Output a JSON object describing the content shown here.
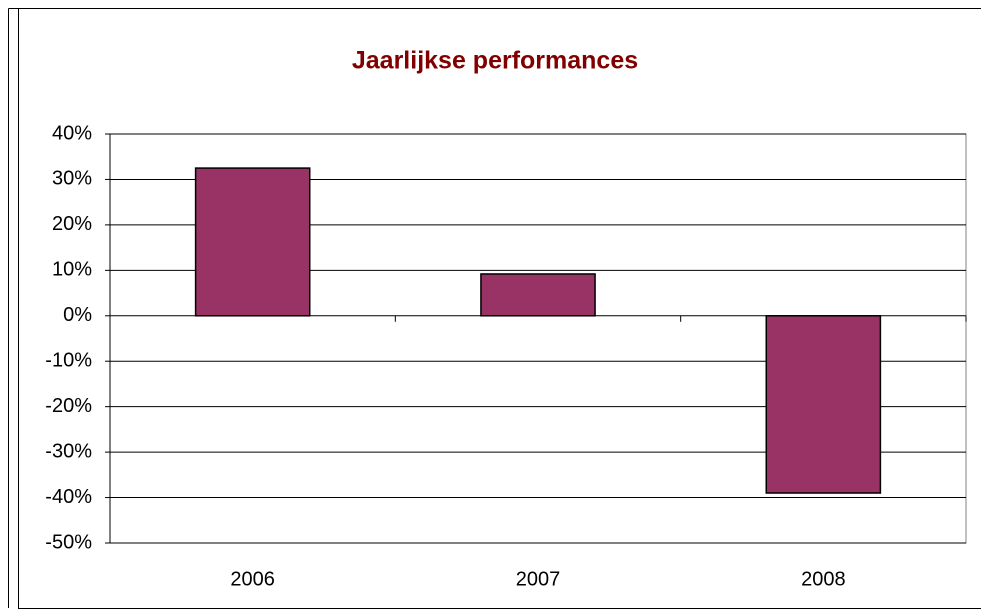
{
  "chart_data": {
    "type": "bar",
    "title": "Jaarlijkse performances",
    "categories": [
      "2006",
      "2007",
      "2008"
    ],
    "values": [
      32.5,
      9.2,
      -39
    ],
    "color": "#993366",
    "ylim": [
      -50,
      40
    ],
    "yticks": [
      {
        "value": -50,
        "label": "-50%"
      },
      {
        "value": -40,
        "label": "-40%"
      },
      {
        "value": -30,
        "label": "-30%"
      },
      {
        "value": -20,
        "label": "-20%"
      },
      {
        "value": -10,
        "label": "-10%"
      },
      {
        "value": 0,
        "label": "0%"
      },
      {
        "value": 10,
        "label": "10%"
      },
      {
        "value": 20,
        "label": "20%"
      },
      {
        "value": 30,
        "label": "30%"
      },
      {
        "value": 40,
        "label": "40%"
      }
    ],
    "grid": true
  }
}
